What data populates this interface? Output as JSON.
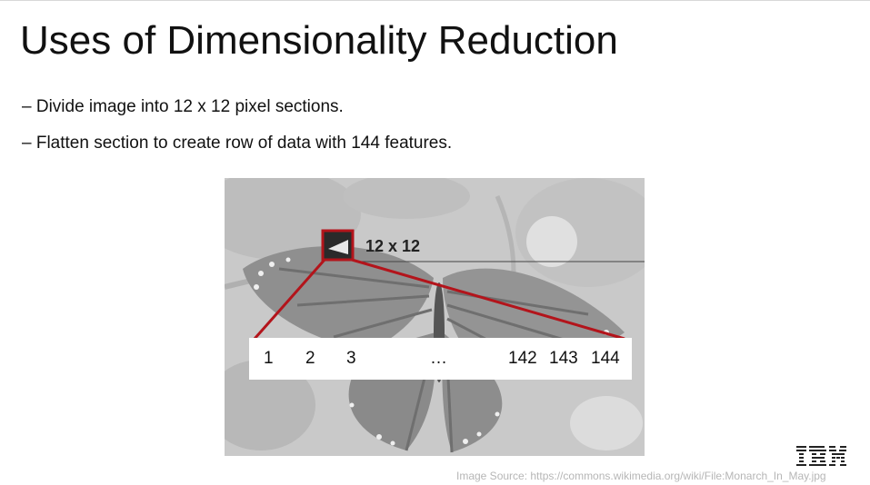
{
  "slide": {
    "title": "Uses of Dimensionality Reduction",
    "bullets": [
      "– Divide image into 12 x 12 pixel sections.",
      "– Flatten section to create row of data with 144 features."
    ]
  },
  "figure": {
    "patch_label": "12 x 12",
    "feature_labels": [
      "1",
      "2",
      "3",
      "…",
      "142",
      "143",
      "144"
    ],
    "highlight_color": "#b3141b"
  },
  "footer": {
    "logo_text": "IBM",
    "image_source": "Image Source: https://commons.wikimedia.org/wiki/File:Monarch_In_May.jpg"
  }
}
